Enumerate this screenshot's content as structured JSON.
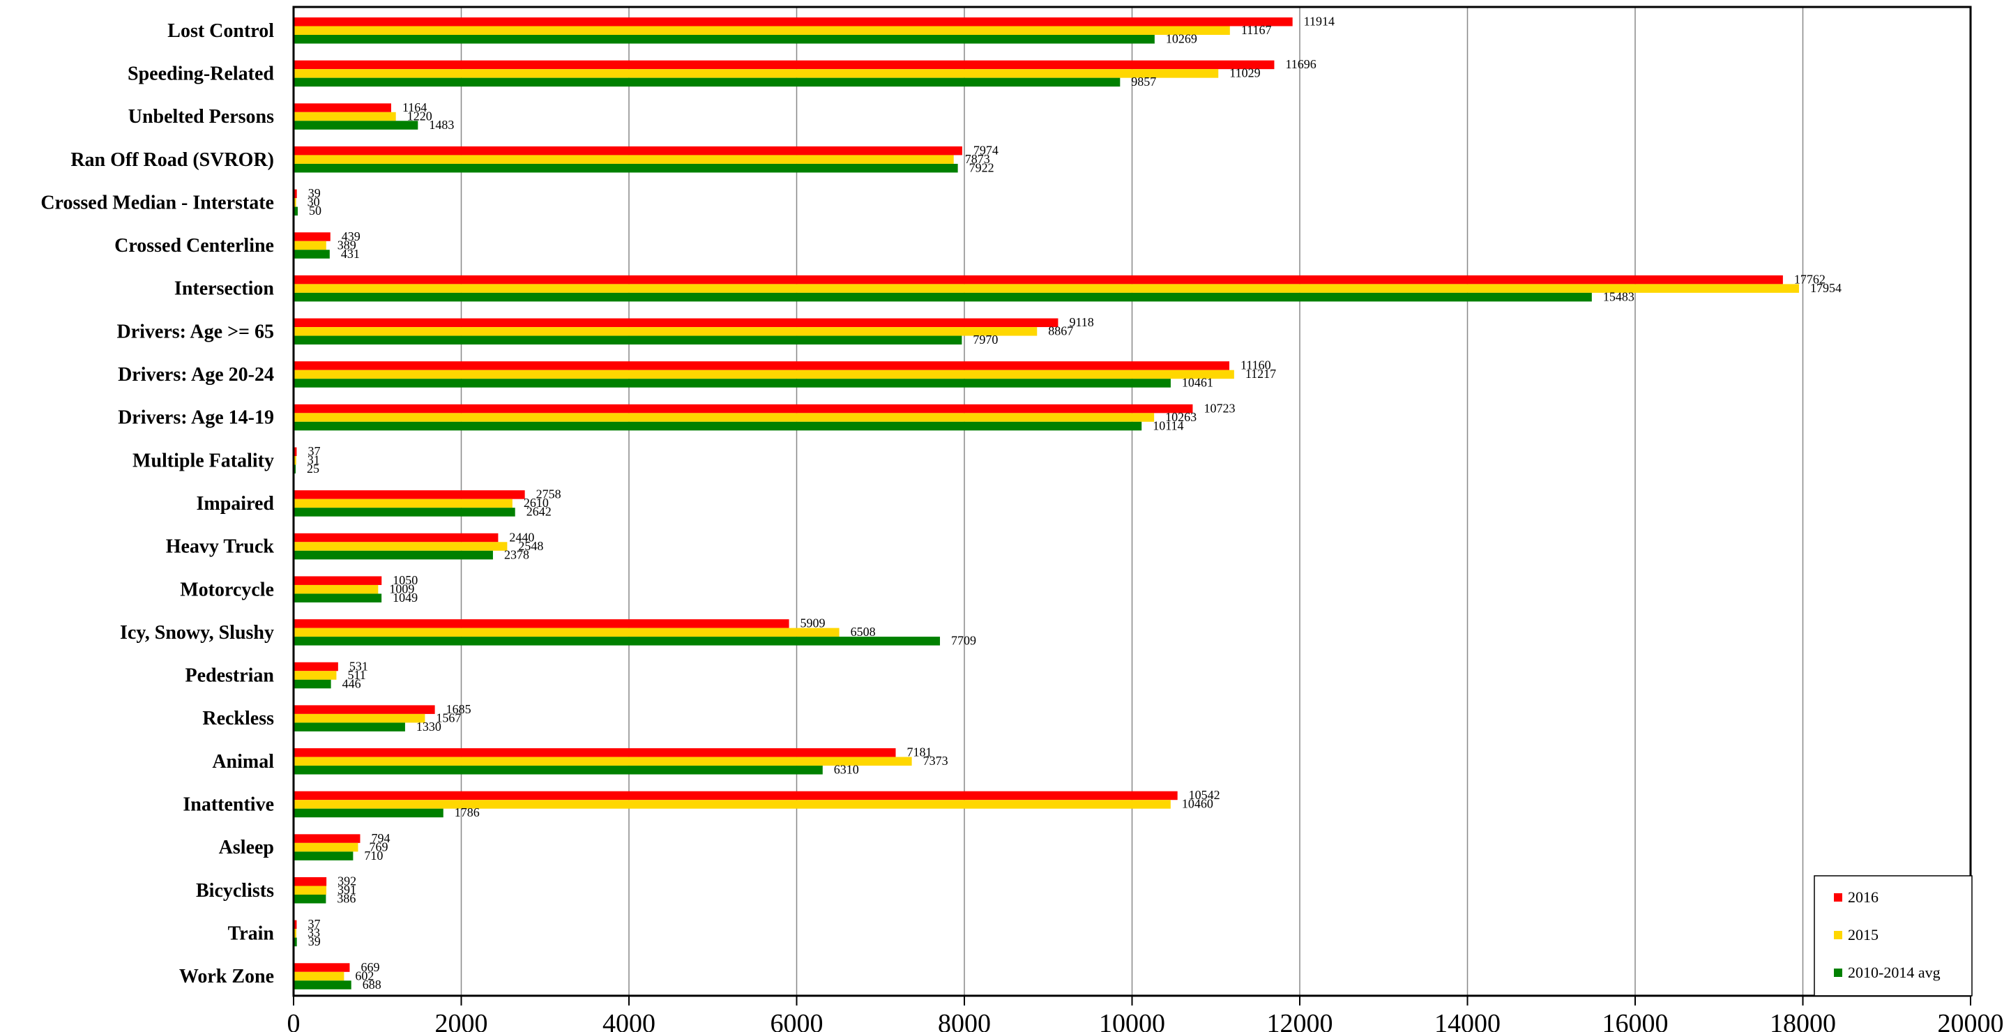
{
  "chart_data": {
    "type": "bar",
    "orientation": "horizontal",
    "title": "",
    "xlabel": "",
    "ylabel": "",
    "xlim": [
      0,
      20000
    ],
    "xticks": [
      0,
      2000,
      4000,
      6000,
      8000,
      10000,
      12000,
      14000,
      16000,
      18000,
      20000
    ],
    "grid": "vertical",
    "legend_position": "bottom-right",
    "categories": [
      "Lost Control",
      "Speeding-Related",
      "Unbelted Persons",
      "Ran Off Road (SVROR)",
      "Crossed Median - Interstate",
      "Crossed Centerline",
      "Intersection",
      "Drivers:  Age >= 65",
      "Drivers:  Age 20-24",
      "Drivers:  Age 14-19",
      "Multiple Fatality",
      "Impaired",
      "Heavy Truck",
      "Motorcycle",
      "Icy, Snowy, Slushy",
      "Pedestrian",
      "Reckless",
      "Animal",
      "Inattentive",
      "Asleep",
      "Bicyclists",
      "Train",
      "Work Zone"
    ],
    "series": [
      {
        "name": "2016",
        "color": "#ff0000",
        "values": [
          11914,
          11696,
          1164,
          7974,
          39,
          439,
          17762,
          9118,
          11160,
          10723,
          37,
          2758,
          2440,
          1050,
          5909,
          531,
          1685,
          7181,
          10542,
          794,
          392,
          37,
          669
        ]
      },
      {
        "name": "2015",
        "color": "#ffd700",
        "values": [
          11167,
          11029,
          1220,
          7873,
          30,
          389,
          17954,
          8867,
          11217,
          10263,
          31,
          2610,
          2548,
          1009,
          6508,
          511,
          1567,
          7373,
          10460,
          769,
          391,
          33,
          602
        ]
      },
      {
        "name": "2010-2014 avg",
        "color": "#008000",
        "values": [
          10269,
          9857,
          1483,
          7922,
          50,
          431,
          15483,
          7970,
          10461,
          10114,
          25,
          2642,
          2378,
          1049,
          7709,
          446,
          1330,
          6310,
          1786,
          710,
          386,
          39,
          688
        ]
      }
    ]
  }
}
